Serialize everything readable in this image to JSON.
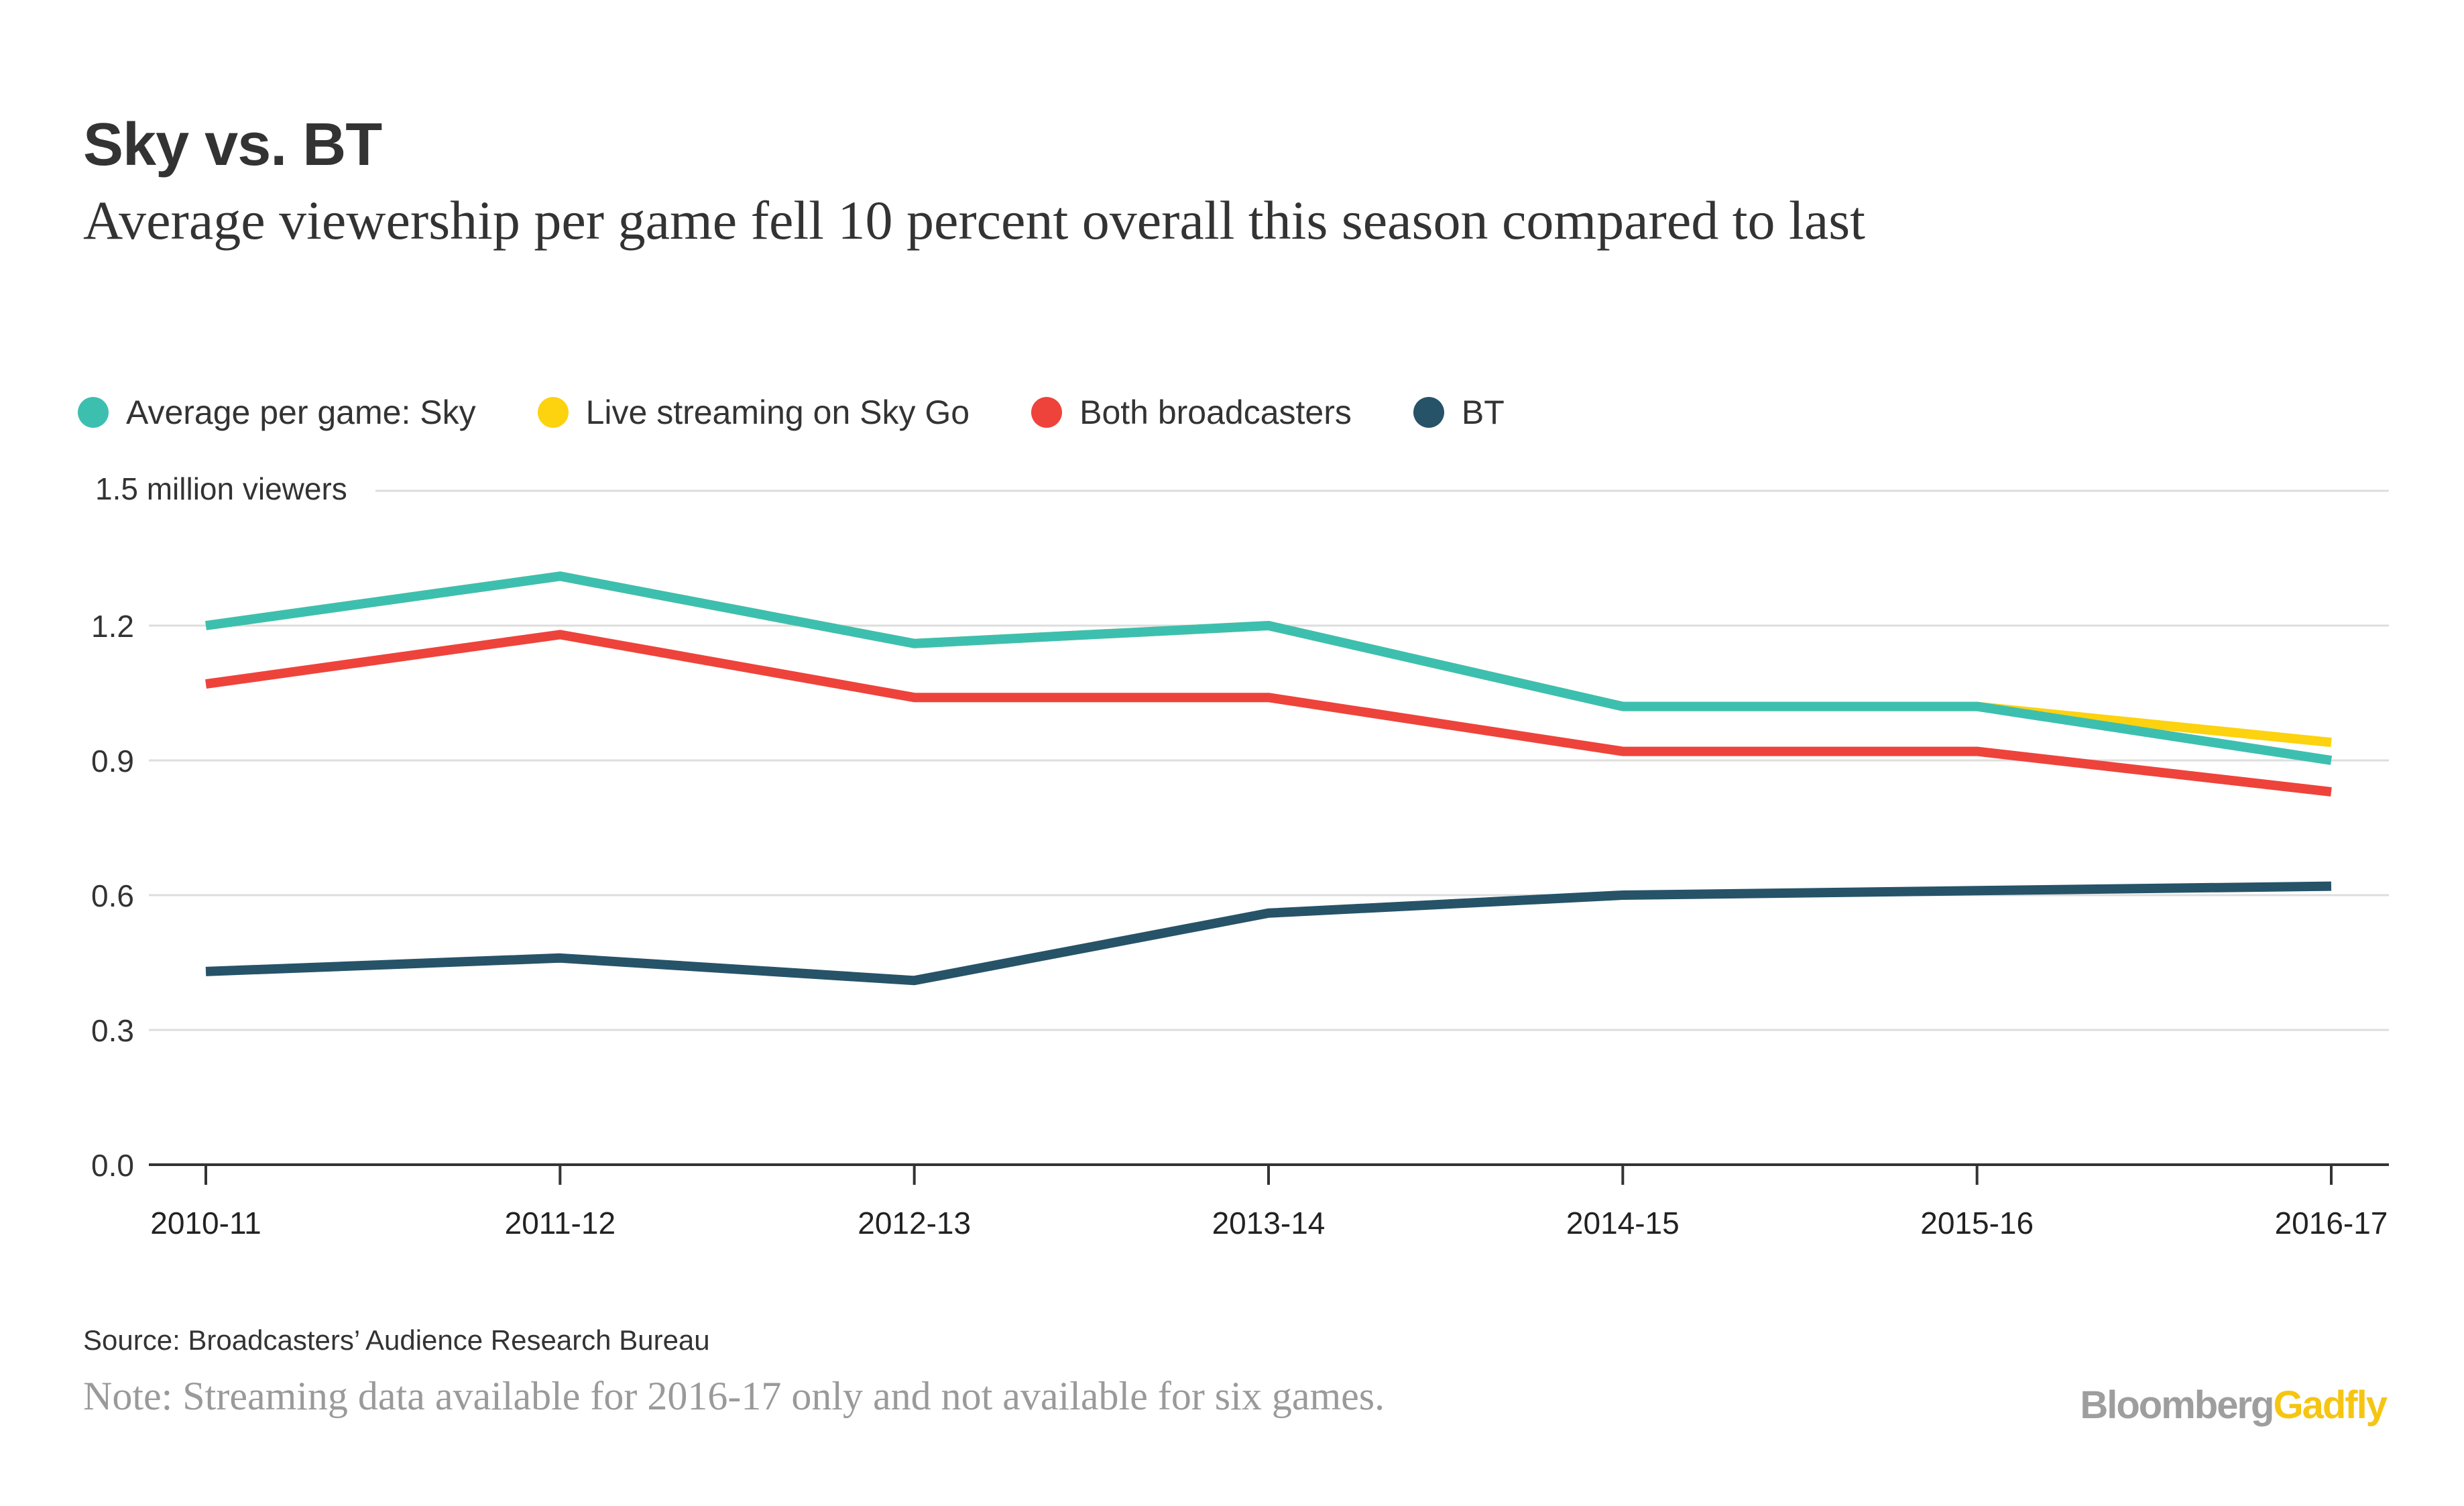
{
  "header": {
    "title": "Sky vs. BT",
    "subtitle": "Average viewership per game fell 10 percent overall this season compared to last"
  },
  "legend": {
    "items": [
      {
        "label": "Average per game: Sky",
        "color": "#3dbfb0"
      },
      {
        "label": "Live streaming on Sky Go",
        "color": "#fdd20f"
      },
      {
        "label": "Both broadcasters",
        "color": "#ee433b"
      },
      {
        "label": "BT",
        "color": "#265368"
      }
    ]
  },
  "footer": {
    "source": "Source: Broadcasters’ Audience Research Bureau",
    "note": "Note: Streaming data available for 2016-17 only and not available for six games.",
    "brand_part1": "Bloomberg",
    "brand_part2": "Gadfly"
  },
  "chart_data": {
    "type": "line",
    "categories": [
      "2010-11",
      "2011-12",
      "2012-13",
      "2013-14",
      "2014-15",
      "2015-16",
      "2016-17"
    ],
    "ylabel": "1.5 million viewers",
    "ylim": [
      0,
      1.5
    ],
    "yticks": [
      {
        "value": 0.0,
        "label": "0.0"
      },
      {
        "value": 0.3,
        "label": "0.3"
      },
      {
        "value": 0.6,
        "label": "0.6"
      },
      {
        "value": 0.9,
        "label": "0.9"
      },
      {
        "value": 1.2,
        "label": "1.2"
      },
      {
        "value": 1.5,
        "label": ""
      }
    ],
    "grid": true,
    "series": [
      {
        "name": "Live streaming on Sky Go",
        "color": "#fdd20f",
        "values": [
          1.2,
          1.31,
          1.16,
          1.2,
          1.02,
          1.02,
          0.94
        ]
      },
      {
        "name": "Average per game: Sky",
        "color": "#3dbfb0",
        "values": [
          1.2,
          1.31,
          1.16,
          1.2,
          1.02,
          1.02,
          0.9
        ]
      },
      {
        "name": "Both broadcasters",
        "color": "#ee433b",
        "values": [
          1.07,
          1.18,
          1.04,
          1.04,
          0.92,
          0.92,
          0.83
        ]
      },
      {
        "name": "BT",
        "color": "#265368",
        "values": [
          0.43,
          0.46,
          0.41,
          0.56,
          0.6,
          0.61,
          0.62
        ]
      }
    ]
  }
}
